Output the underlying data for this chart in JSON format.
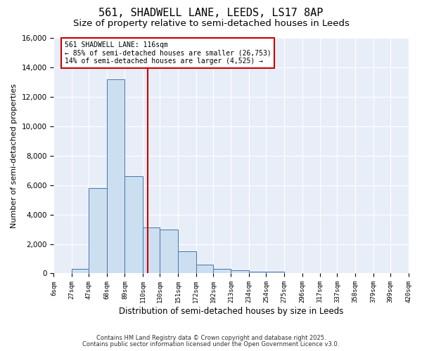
{
  "title1": "561, SHADWELL LANE, LEEDS, LS17 8AP",
  "title2": "Size of property relative to semi-detached houses in Leeds",
  "xlabel": "Distribution of semi-detached houses by size in Leeds",
  "ylabel": "Number of semi-detached properties",
  "bin_edges": [
    6,
    27,
    47,
    68,
    89,
    110,
    130,
    151,
    172,
    192,
    213,
    234,
    254,
    275,
    296,
    317,
    337,
    358,
    379,
    399,
    420
  ],
  "bar_heights": [
    0,
    300,
    5800,
    13200,
    6600,
    3100,
    3000,
    1500,
    600,
    300,
    200,
    100,
    100,
    0,
    0,
    0,
    0,
    0,
    0,
    0
  ],
  "bar_color": "#ccdff0",
  "bar_edge_color": "#4477aa",
  "property_size": 116,
  "vline_color": "#cc0000",
  "annotation_line1": "561 SHADWELL LANE: 116sqm",
  "annotation_line2": "← 85% of semi-detached houses are smaller (26,753)",
  "annotation_line3": "14% of semi-detached houses are larger (4,525) →",
  "annotation_box_edge": "#cc0000",
  "ylim": [
    0,
    16000
  ],
  "yticks": [
    0,
    2000,
    4000,
    6000,
    8000,
    10000,
    12000,
    14000,
    16000
  ],
  "footnote1": "Contains HM Land Registry data © Crown copyright and database right 2025.",
  "footnote2": "Contains public sector information licensed under the Open Government Licence v3.0.",
  "bg_color": "#ffffff",
  "plot_bg_color": "#e8eef8",
  "grid_color": "#ffffff"
}
